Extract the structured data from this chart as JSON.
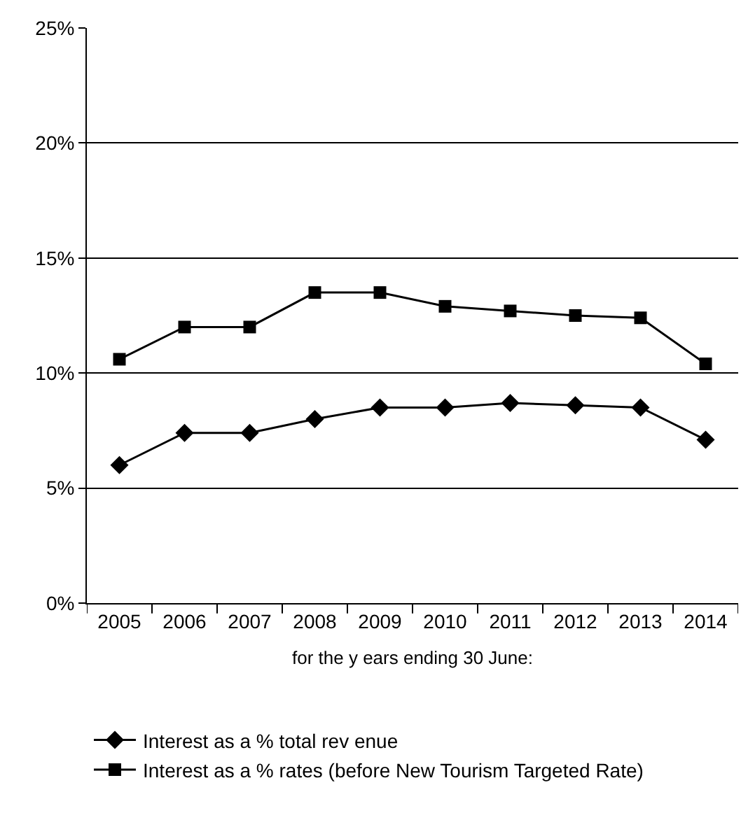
{
  "chart_data": {
    "type": "line",
    "xlabel": "for the y ears ending 30 June:",
    "categories": [
      "2005",
      "2006",
      "2007",
      "2008",
      "2009",
      "2010",
      "2011",
      "2012",
      "2013",
      "2014"
    ],
    "series": [
      {
        "name": "Interest as a % total rev enue",
        "color": "#000000",
        "marker": "diamond",
        "values": [
          6.0,
          7.4,
          7.4,
          8.0,
          8.5,
          8.5,
          8.7,
          8.6,
          8.5,
          7.1
        ]
      },
      {
        "name": "Interest as a % rates (before New Tourism Targeted Rate)",
        "color": "#000000",
        "marker": "square",
        "values": [
          10.6,
          12.0,
          12.0,
          13.5,
          13.5,
          12.9,
          12.7,
          12.5,
          12.4,
          10.4
        ]
      }
    ],
    "ylim": [
      0,
      25
    ],
    "yticks": [
      {
        "value": 0,
        "label": "0%"
      },
      {
        "value": 5,
        "label": "5%"
      },
      {
        "value": 10,
        "label": "10%"
      },
      {
        "value": 15,
        "label": "15%"
      },
      {
        "value": 20,
        "label": "20%"
      },
      {
        "value": 25,
        "label": "25%"
      }
    ],
    "grid": "y",
    "legend": "bottom",
    "line_style": "solid"
  }
}
